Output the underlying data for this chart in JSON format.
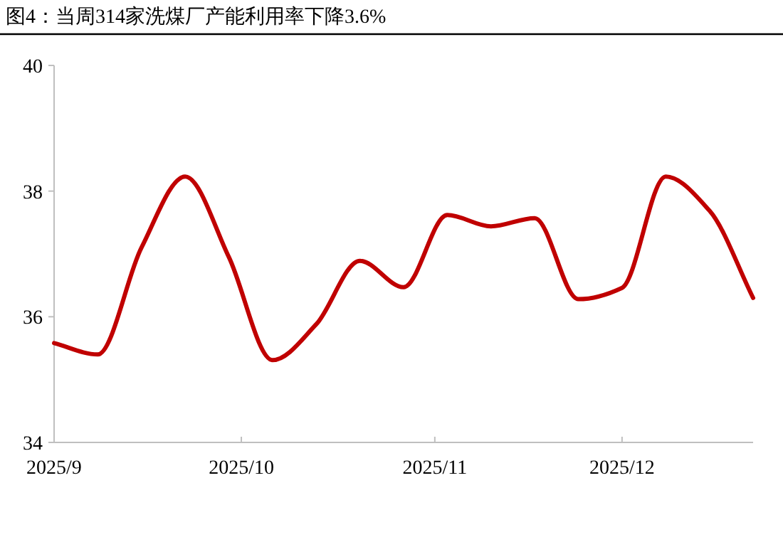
{
  "chart_data": {
    "type": "line",
    "title": "图4：当周314家洗煤厂产能利用率下降3.6%",
    "x": [
      "2025-09-01",
      "2025-09-08",
      "2025-09-15",
      "2025-09-22",
      "2025-09-29",
      "2025-10-06",
      "2025-10-13",
      "2025-10-20",
      "2025-10-27",
      "2025-11-03",
      "2025-11-10",
      "2025-11-17",
      "2025-11-24",
      "2025-12-01",
      "2025-12-08",
      "2025-12-15",
      "2025-12-22"
    ],
    "series": [
      {
        "color": "#c00000",
        "values": [
          35.58,
          35.4,
          37.1,
          38.23,
          36.95,
          35.31,
          35.88,
          36.89,
          36.47,
          37.62,
          37.44,
          37.57,
          36.28,
          36.46,
          38.23,
          37.69,
          36.3
        ]
      }
    ],
    "xlim": [
      "2025-09-01",
      "2025-12-22"
    ],
    "xticks": [
      {
        "value": "2025-09-01",
        "label": "2025/9"
      },
      {
        "value": "2025-10-01",
        "label": "2025/10"
      },
      {
        "value": "2025-11-01",
        "label": "2025/11"
      },
      {
        "value": "2025-12-01",
        "label": "2025/12"
      }
    ],
    "ylim": [
      34,
      40
    ],
    "yticks": [
      34,
      36,
      38,
      40
    ],
    "grid": false,
    "marker": "none",
    "line_style": "solid"
  }
}
